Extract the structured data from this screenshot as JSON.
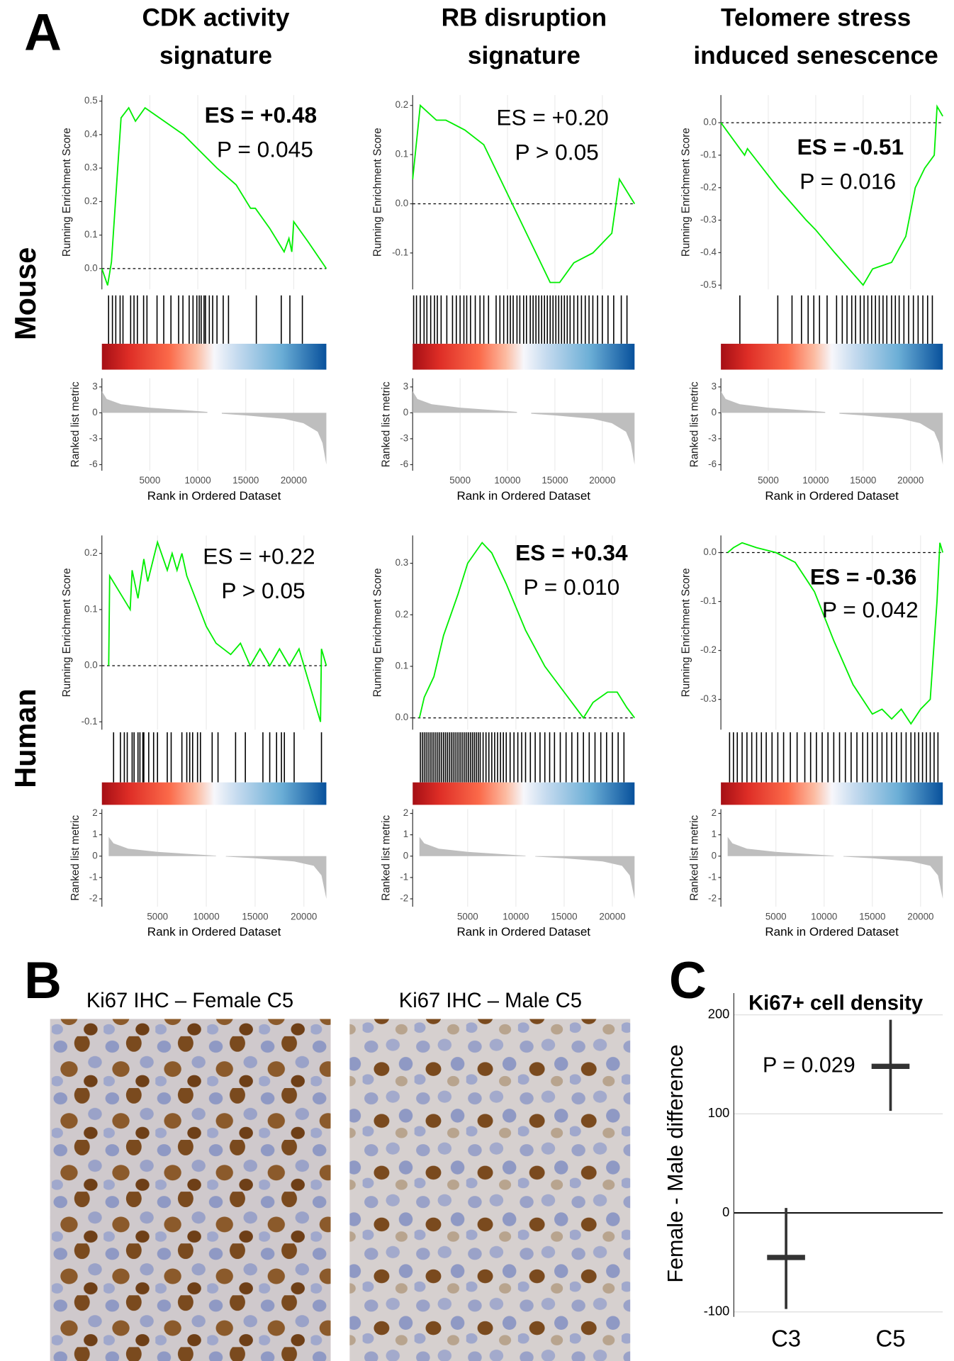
{
  "figure": {
    "panel_labels": [
      "A",
      "B",
      "C"
    ],
    "column_titles": [
      [
        "CDK activity",
        "signature"
      ],
      [
        "RB disruption",
        "signature"
      ],
      [
        "Telomere stress",
        "induced senescence"
      ]
    ],
    "row_labels": [
      "Mouse",
      "Human"
    ],
    "images": [
      {
        "title": "Ki67 IHC – Female C5"
      },
      {
        "title": "Ki67 IHC – Male C5"
      }
    ]
  },
  "chart_data": [
    {
      "type": "gsea",
      "es_label": "ES = +0.48",
      "es_color": "#ff0000",
      "es_weight": "bold",
      "p_label": "P = 0.045",
      "ylabel": "Running Enrichment Score",
      "ylim": [
        -0.062,
        0.518
      ],
      "yticks": [
        {
          "value": 0,
          "label": "0.0"
        },
        0.1,
        0.2,
        0.3,
        0.4,
        0.5
      ],
      "x": [
        0,
        600,
        1000,
        2000,
        2800,
        3500,
        4500,
        6000,
        8500,
        12000,
        14000,
        15500,
        16000,
        17500,
        19000,
        19500,
        19800,
        20000,
        21500,
        23400
      ],
      "series": [
        {
          "color": "#00ee00",
          "values": [
            0,
            -0.05,
            0.02,
            0.45,
            0.48,
            0.44,
            0.48,
            0.45,
            0.4,
            0.3,
            0.25,
            0.18,
            0.18,
            0.12,
            0.05,
            0.09,
            0.05,
            0.14,
            0.08,
            0
          ]
        }
      ],
      "hits": [
        700,
        1100,
        1450,
        1900,
        2200,
        3000,
        3350,
        3700,
        4350,
        4700,
        5750,
        6450,
        7200,
        8000,
        8450,
        9100,
        9500,
        9900,
        10150,
        10350,
        10650,
        10800,
        11200,
        11550,
        12000,
        12650,
        13200,
        16100,
        18700,
        19600,
        20900
      ],
      "metric_ylabel": "Ranked list metric",
      "metric_ylim": [
        -6.7,
        4
      ],
      "metric_yticks": [
        -6,
        -3,
        0,
        3
      ],
      "metric_x": [
        0,
        500,
        2000,
        5000,
        10000,
        11000,
        11800,
        12500,
        15000,
        19000,
        21000,
        22500,
        23000,
        23400
      ],
      "metric_values": [
        2.5,
        1.6,
        1.0,
        0.6,
        0.2,
        0.1,
        null,
        -0.1,
        -0.3,
        -0.7,
        -1.2,
        -2.2,
        -3.5,
        -6
      ],
      "metric_color": "#bebebe",
      "xlabel": "Rank in Ordered Dataset",
      "xlim": [
        0,
        23400
      ],
      "xticks": [
        5000,
        10000,
        15000,
        20000
      ],
      "grid": true
    },
    {
      "type": "gsea",
      "es_label": "ES = +0.20",
      "es_color": "#ff0000",
      "es_weight": "normal",
      "p_label": "P > 0.05",
      "ylabel": "Running Enrichment Score",
      "ylim": [
        -0.174,
        0.221
      ],
      "yticks": [
        -0.1,
        {
          "value": 0,
          "label": "0.0"
        },
        0.1,
        0.2
      ],
      "x": [
        0,
        800,
        2500,
        3500,
        5500,
        7500,
        9000,
        10500,
        12500,
        14500,
        15500,
        17000,
        19000,
        20500,
        21000,
        21800,
        23400
      ],
      "series": [
        {
          "color": "#00ee00",
          "values": [
            0.05,
            0.2,
            0.17,
            0.17,
            0.15,
            0.12,
            0.06,
            0,
            -0.08,
            -0.16,
            -0.16,
            -0.12,
            -0.1,
            -0.07,
            -0.06,
            0.05,
            0
          ]
        }
      ],
      "hits": [
        100,
        400,
        800,
        1200,
        1500,
        1900,
        2300,
        2600,
        3000,
        3600,
        4200,
        4600,
        5000,
        5400,
        5700,
        6100,
        6600,
        7100,
        7500,
        8000,
        8800,
        9200,
        9600,
        10000,
        10300,
        10600,
        11000,
        11300,
        11700,
        12000,
        12400,
        12700,
        13000,
        13300,
        13600,
        13900,
        14200,
        14500,
        14800,
        15100,
        15400,
        15700,
        16000,
        16300,
        16600,
        17000,
        17400,
        17800,
        18200,
        18600,
        19000,
        19500,
        20000,
        20600,
        21200,
        22000,
        22600
      ],
      "metric_ylabel": "Ranked list metric",
      "metric_ylim": [
        -6.7,
        4
      ],
      "metric_yticks": [
        -6,
        -3,
        0,
        3
      ],
      "metric_x": [
        0,
        500,
        2000,
        5000,
        10000,
        11000,
        11800,
        12500,
        15000,
        19000,
        21000,
        22500,
        23000,
        23400
      ],
      "metric_values": [
        2.5,
        1.6,
        1.0,
        0.6,
        0.2,
        0.1,
        null,
        -0.1,
        -0.3,
        -0.7,
        -1.2,
        -2.2,
        -3.5,
        -6
      ],
      "metric_color": "#bebebe",
      "xlabel": "Rank in Ordered Dataset",
      "xlim": [
        0,
        23400
      ],
      "xticks": [
        5000,
        10000,
        15000,
        20000
      ],
      "grid": true
    },
    {
      "type": "gsea",
      "es_label": "ES = -0.51",
      "es_color": "#0000ff",
      "es_weight": "bold",
      "p_label": "P = 0.016",
      "ylabel": "Running Enrichment Score",
      "ylim": [
        -0.513,
        0.085
      ],
      "yticks": [
        -0.5,
        -0.4,
        -0.3,
        -0.2,
        -0.1,
        {
          "value": 0,
          "label": "0.0"
        }
      ],
      "x": [
        0,
        2500,
        2800,
        6000,
        9000,
        10000,
        12000,
        13500,
        15000,
        16000,
        18000,
        19500,
        20500,
        21500,
        22500,
        22800,
        23400
      ],
      "series": [
        {
          "color": "#00ee00",
          "values": [
            0,
            -0.1,
            -0.08,
            -0.2,
            -0.3,
            -0.33,
            -0.4,
            -0.45,
            -0.5,
            -0.45,
            -0.43,
            -0.35,
            -0.2,
            -0.14,
            -0.1,
            0.05,
            0.02
          ]
        }
      ],
      "hits": [
        2000,
        6000,
        7500,
        8500,
        9200,
        9800,
        10400,
        11200,
        12200,
        12800,
        13300,
        13800,
        14200,
        14700,
        15100,
        15500,
        15900,
        16300,
        16700,
        17100,
        17500,
        18000,
        18400,
        18800,
        19300,
        19800,
        20300,
        20800,
        21300,
        21800,
        22300
      ],
      "metric_ylabel": "Ranked list metric",
      "metric_ylim": [
        -6.7,
        4
      ],
      "metric_yticks": [
        -6,
        -3,
        0,
        3
      ],
      "metric_x": [
        0,
        500,
        2000,
        5000,
        10000,
        11000,
        11800,
        12500,
        15000,
        19000,
        21000,
        22500,
        23000,
        23400
      ],
      "metric_values": [
        2.5,
        1.6,
        1.0,
        0.6,
        0.2,
        0.1,
        null,
        -0.1,
        -0.3,
        -0.7,
        -1.2,
        -2.2,
        -3.5,
        -6
      ],
      "metric_color": "#bebebe",
      "xlabel": "Rank in Ordered Dataset",
      "xlim": [
        0,
        23400
      ],
      "xticks": [
        5000,
        10000,
        15000,
        20000
      ],
      "grid": true
    },
    {
      "type": "gsea",
      "es_label": "ES = +0.22",
      "es_color": "#ff0000",
      "es_weight": "normal",
      "p_label": "P > 0.05",
      "ylabel": "Running Enrichment Score",
      "ylim": [
        -0.114,
        0.232
      ],
      "yticks": [
        -0.1,
        {
          "value": 0,
          "label": "0.0"
        },
        0.1,
        0.2
      ],
      "x": [
        0,
        100,
        2200,
        2400,
        3000,
        3600,
        4000,
        5000,
        6000,
        6500,
        7000,
        7500,
        8000,
        10000,
        11000,
        12500,
        13500,
        14500,
        15500,
        16500,
        17500,
        18500,
        19500,
        21700,
        21800,
        22300
      ],
      "series": [
        {
          "color": "#00ee00",
          "values": [
            0,
            0.16,
            0.1,
            0.17,
            0.12,
            0.19,
            0.15,
            0.22,
            0.17,
            0.2,
            0.17,
            0.2,
            0.16,
            0.07,
            0.04,
            0.02,
            0.04,
            0,
            0.03,
            0,
            0.03,
            0,
            0.03,
            -0.1,
            0.03,
            0
          ]
        }
      ],
      "hits": [
        500,
        1200,
        1600,
        1900,
        2400,
        2600,
        3000,
        3200,
        3500,
        3600,
        4100,
        4600,
        5000,
        6000,
        6400,
        7500,
        8000,
        8300,
        8600,
        9100,
        9400,
        10600,
        11200,
        13000,
        14000,
        15800,
        16500,
        17200,
        17700,
        18000,
        19000,
        21800
      ],
      "metric_ylabel": "Ranked list metric",
      "metric_ylim": [
        -2.37,
        2.2
      ],
      "metric_yticks": [
        -2,
        -1,
        0,
        1,
        2
      ],
      "metric_x": [
        0,
        500,
        2000,
        5000,
        10000,
        11000,
        11500,
        12000,
        15000,
        19000,
        21000,
        21800,
        22300
      ],
      "metric_values": [
        0.9,
        0.6,
        0.35,
        0.2,
        0.05,
        0.02,
        null,
        -0.02,
        -0.1,
        -0.25,
        -0.45,
        -0.9,
        -2
      ],
      "metric_color": "#bebebe",
      "xlabel": "Rank in Ordered Dataset",
      "xlim": [
        -700,
        22300
      ],
      "xticks": [
        5000,
        10000,
        15000,
        20000
      ],
      "grid": true
    },
    {
      "type": "gsea",
      "es_label": "ES = +0.34",
      "es_color": "#ff0000",
      "es_weight": "bold",
      "p_label": "P = 0.010",
      "ylabel": "Running Enrichment Score",
      "ylim": [
        -0.023,
        0.354
      ],
      "yticks": [
        {
          "value": 0,
          "label": "0.0"
        },
        0.1,
        0.2,
        0.3
      ],
      "x": [
        0,
        500,
        1500,
        2500,
        4000,
        5000,
        6500,
        7500,
        9000,
        11000,
        13000,
        15000,
        17000,
        18000,
        19500,
        20500,
        21500,
        22300
      ],
      "series": [
        {
          "color": "#00ee00",
          "values": [
            0,
            0.04,
            0.08,
            0.16,
            0.24,
            0.3,
            0.34,
            0.32,
            0.26,
            0.17,
            0.1,
            0.05,
            0,
            0.03,
            0.05,
            0.05,
            0.02,
            0
          ]
        }
      ],
      "hits": [
        100,
        300,
        500,
        700,
        900,
        1100,
        1300,
        1500,
        1700,
        1900,
        2100,
        2300,
        2500,
        2700,
        2900,
        3100,
        3300,
        3500,
        3700,
        3900,
        4100,
        4300,
        4500,
        4700,
        4900,
        5100,
        5300,
        5500,
        5700,
        5900,
        6100,
        6300,
        6600,
        6900,
        7200,
        7500,
        7800,
        8100,
        8400,
        8700,
        9000,
        9400,
        9800,
        10200,
        10600,
        11000,
        11500,
        12000,
        12500,
        13000,
        13500,
        14000,
        14600,
        15200,
        15800,
        16400,
        17000,
        17600,
        18200,
        18800,
        19400,
        20000,
        20600,
        21200
      ],
      "metric_ylabel": "Ranked list metric",
      "metric_ylim": [
        -2.37,
        2.2
      ],
      "metric_yticks": [
        -2,
        -1,
        0,
        1,
        2
      ],
      "metric_x": [
        0,
        500,
        2000,
        5000,
        10000,
        11000,
        11500,
        12000,
        15000,
        19000,
        21000,
        21800,
        22300
      ],
      "metric_values": [
        0.9,
        0.6,
        0.35,
        0.2,
        0.05,
        0.02,
        null,
        -0.02,
        -0.1,
        -0.25,
        -0.45,
        -0.9,
        -2
      ],
      "metric_color": "#bebebe",
      "xlabel": "Rank in Ordered Dataset",
      "xlim": [
        -700,
        22300
      ],
      "xticks": [
        5000,
        10000,
        15000,
        20000
      ],
      "grid": true
    },
    {
      "type": "gsea",
      "es_label": "ES = -0.36",
      "es_color": "#0000ff",
      "es_weight": "bold",
      "p_label": "P = 0.042",
      "ylabel": "Running Enrichment Score",
      "ylim": [
        -0.362,
        0.035
      ],
      "yticks": [
        -0.3,
        -0.2,
        -0.1,
        {
          "value": 0,
          "label": "0.0"
        }
      ],
      "x": [
        0,
        600,
        1500,
        3000,
        5000,
        7000,
        9000,
        11000,
        13000,
        15000,
        16000,
        17000,
        18000,
        19000,
        20000,
        21000,
        21700,
        22000,
        22300
      ],
      "series": [
        {
          "color": "#00ee00",
          "values": [
            0,
            0.01,
            0.02,
            0.01,
            0,
            -0.02,
            -0.08,
            -0.18,
            -0.27,
            -0.33,
            -0.32,
            -0.34,
            -0.32,
            -0.35,
            -0.32,
            -0.3,
            -0.1,
            0.02,
            0
          ]
        }
      ],
      "hits": [
        200,
        600,
        1000,
        1500,
        2000,
        2500,
        3000,
        3500,
        4000,
        4600,
        5200,
        5800,
        6500,
        7200,
        8000,
        8600,
        9200,
        9800,
        10400,
        11000,
        11600,
        12200,
        12800,
        13400,
        14000,
        14500,
        15000,
        15500,
        16000,
        16500,
        17000,
        17500,
        18000,
        18500,
        19000,
        19400,
        19800,
        20200,
        20600,
        21000,
        21400,
        21800
      ],
      "metric_ylabel": "Ranked list metric",
      "metric_ylim": [
        -2.37,
        2.2
      ],
      "metric_yticks": [
        -2,
        -1,
        0,
        1,
        2
      ],
      "metric_x": [
        0,
        500,
        2000,
        5000,
        10000,
        11000,
        11500,
        12000,
        15000,
        19000,
        21000,
        21800,
        22300
      ],
      "metric_values": [
        0.9,
        0.6,
        0.35,
        0.2,
        0.05,
        0.02,
        null,
        -0.02,
        -0.1,
        -0.25,
        -0.45,
        -0.9,
        -2
      ],
      "metric_color": "#bebebe",
      "xlabel": "Rank in Ordered Dataset",
      "xlim": [
        -700,
        22300
      ],
      "xticks": [
        5000,
        10000,
        15000,
        20000
      ],
      "grid": true
    },
    {
      "type": "crossbar",
      "title": "Ki67+ cell density",
      "ylabel": "Female - Male difference",
      "annotation": "P = 0.029",
      "categories": [
        "C3",
        "C5"
      ],
      "values": [
        -45,
        148
      ],
      "lower": [
        -97,
        103
      ],
      "upper": [
        5,
        195
      ],
      "color": "#333333",
      "ylim": [
        -105,
        222
      ],
      "yticks": [
        -100,
        0,
        100,
        200
      ],
      "grid": true
    }
  ]
}
